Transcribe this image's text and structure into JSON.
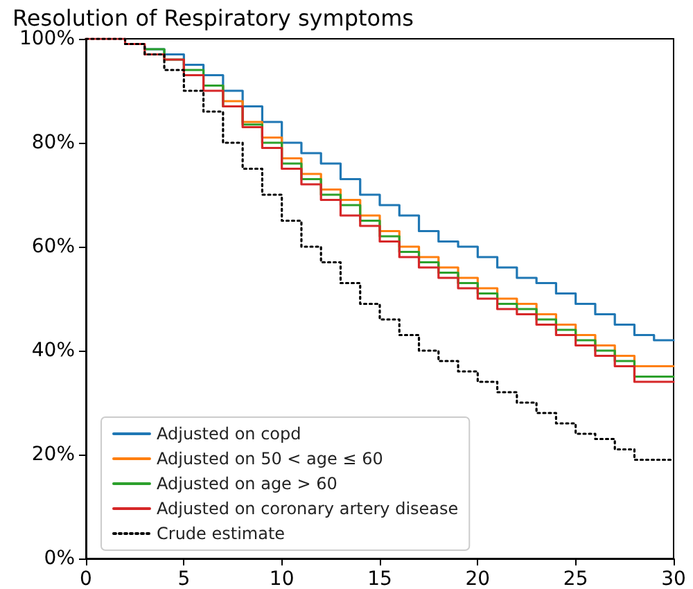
{
  "chart_data": {
    "type": "step",
    "title": "Resolution of Respiratory symptoms",
    "x": [
      0,
      1,
      2,
      3,
      4,
      5,
      6,
      7,
      8,
      9,
      10,
      11,
      12,
      13,
      14,
      15,
      16,
      17,
      18,
      19,
      20,
      21,
      22,
      23,
      24,
      25,
      26,
      27,
      28,
      29,
      30
    ],
    "series": [
      {
        "name": "Adjusted on copd",
        "color": "#1f77b4",
        "line_style": "solid",
        "values": [
          null,
          null,
          null,
          98,
          97,
          95,
          93,
          90,
          87,
          84,
          80,
          78,
          76,
          73,
          70,
          68,
          66,
          63,
          61,
          60,
          58,
          56,
          54,
          53,
          51,
          49,
          47,
          45,
          43,
          42,
          42
        ]
      },
      {
        "name": "Adjusted on 50 < age ≤ 60",
        "color": "#ff7f0e",
        "line_style": "solid",
        "values": [
          null,
          null,
          null,
          null,
          null,
          null,
          91,
          88,
          84,
          81,
          77,
          74,
          71,
          69,
          66,
          63,
          60,
          58,
          56,
          54,
          52,
          50,
          49,
          47,
          45,
          43,
          41,
          39,
          37,
          37,
          37
        ]
      },
      {
        "name": "Adjusted on age > 60",
        "color": "#2ca02c",
        "line_style": "solid",
        "values": [
          null,
          null,
          null,
          98,
          96,
          94,
          91,
          87,
          83.5,
          80,
          76,
          73,
          70,
          68,
          65,
          62,
          59,
          57,
          55,
          53,
          51,
          49,
          48,
          46,
          44,
          42,
          40,
          38,
          35,
          35,
          35
        ]
      },
      {
        "name": "Adjusted on coronary artery disease",
        "color": "#d62728",
        "line_style": "solid",
        "values": [
          100,
          100,
          99,
          97,
          96,
          93,
          90,
          87,
          83,
          79,
          75,
          72,
          69,
          66,
          64,
          61,
          58,
          56,
          54,
          52,
          50,
          48,
          47,
          45,
          43,
          41,
          39,
          37,
          34,
          34,
          34
        ]
      },
      {
        "name": "Crude estimate",
        "color": "#000000",
        "line_style": "dotted",
        "values": [
          100,
          100,
          99,
          97,
          94,
          90,
          86,
          80,
          75,
          70,
          65,
          60,
          57,
          53,
          49,
          46,
          43,
          40,
          38,
          36,
          34,
          32,
          30,
          28,
          26,
          24,
          23,
          21,
          19,
          19,
          19
        ]
      }
    ],
    "xlim": [
      0,
      30
    ],
    "xticks": [
      0,
      5,
      10,
      15,
      20,
      25,
      30
    ],
    "ylim": [
      0,
      100
    ],
    "yticks": [
      {
        "value": 0,
        "label": "0%"
      },
      {
        "value": 20,
        "label": "20%"
      },
      {
        "value": 40,
        "label": "40%"
      },
      {
        "value": 60,
        "label": "60%"
      },
      {
        "value": 80,
        "label": "80%"
      },
      {
        "value": 100,
        "label": "100%"
      }
    ],
    "grid": false,
    "legend": "bottom left",
    "marker": "none"
  }
}
